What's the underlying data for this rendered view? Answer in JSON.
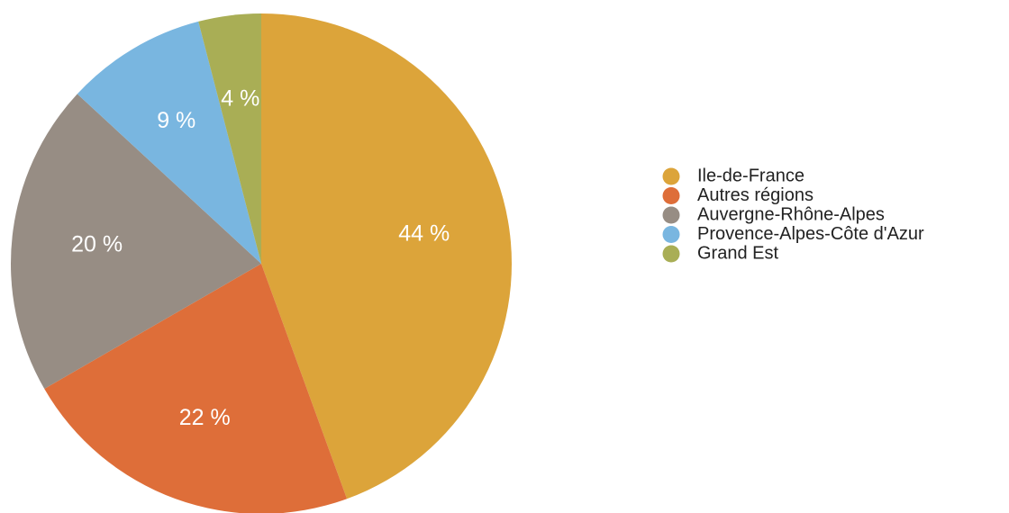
{
  "chart_data": {
    "type": "pie",
    "categories": [
      "Ile-de-France",
      "Autres régions",
      "Auvergne-Rhône-Alpes",
      "Provence-Alpes-Côte d'Azur",
      "Grand Est"
    ],
    "values": [
      44,
      22,
      20,
      9,
      4
    ],
    "value_labels": [
      "44 %",
      "22 %",
      "20 %",
      "9 %",
      "4 %"
    ],
    "colors": [
      "#dca43a",
      "#de6e39",
      "#978d84",
      "#79b6e0",
      "#a9ae55"
    ],
    "legend": "right"
  }
}
